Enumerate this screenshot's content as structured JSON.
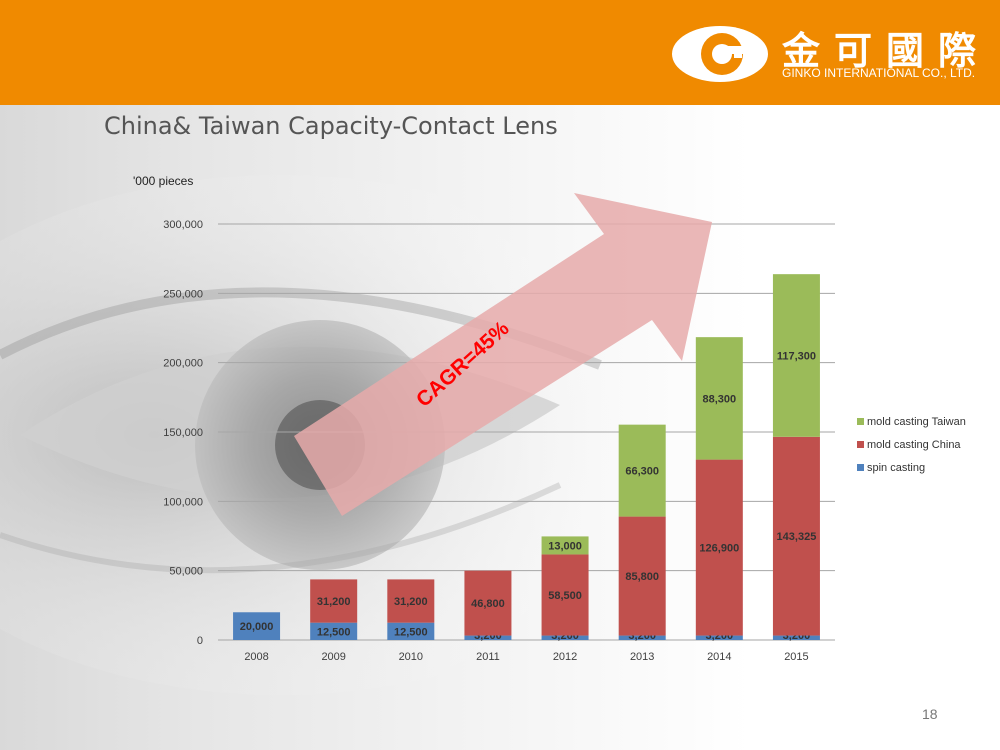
{
  "header": {
    "logo_cn": "金可國際",
    "logo_en": "GINKO INTERNATIONAL CO., LTD."
  },
  "slide": {
    "title": "China& Taiwan Capacity-Contact Lens",
    "page_number": "18"
  },
  "chart_data": {
    "type": "bar",
    "stacked": true,
    "title": "China& Taiwan Capacity-Contact Lens",
    "ylabel": "'000 pieces",
    "xlabel": "",
    "ylim": [
      0,
      300000
    ],
    "yticks": [
      "0",
      "50,000",
      "100,000",
      "150,000",
      "200,000",
      "250,000",
      "300,000"
    ],
    "categories": [
      "2008",
      "2009",
      "2010",
      "2011",
      "2012",
      "2013",
      "2014",
      "2015"
    ],
    "series": [
      {
        "name": "spin casting",
        "color": "#4f81bd",
        "values": [
          20000,
          12500,
          12500,
          3200,
          3200,
          3200,
          3200,
          3200
        ],
        "labels": [
          "20,000",
          "12,500",
          "12,500",
          "3,200",
          "3,200",
          "3,200",
          "3,200",
          "3,200"
        ]
      },
      {
        "name": "mold casting China",
        "color": "#c0504d",
        "values": [
          0,
          31200,
          31200,
          46800,
          58500,
          85800,
          126900,
          143325
        ],
        "labels": [
          "",
          "31,200",
          "31,200",
          "46,800",
          "58,500",
          "85,800",
          "126,900",
          "143,325"
        ]
      },
      {
        "name": "mold casting Taiwan",
        "color": "#9bbb59",
        "values": [
          0,
          0,
          0,
          0,
          13000,
          66300,
          88300,
          117300
        ],
        "labels": [
          "",
          "",
          "",
          "",
          "13,000",
          "66,300",
          "88,300",
          "117,300"
        ]
      }
    ],
    "legend": [
      "mold casting Taiwan",
      "mold casting China",
      "spin casting"
    ],
    "legend_position": "right",
    "grid": true,
    "annotation": "CAGR=45%",
    "annotation_color": "#ff0000",
    "arrow_color": "#e6aaaa"
  }
}
